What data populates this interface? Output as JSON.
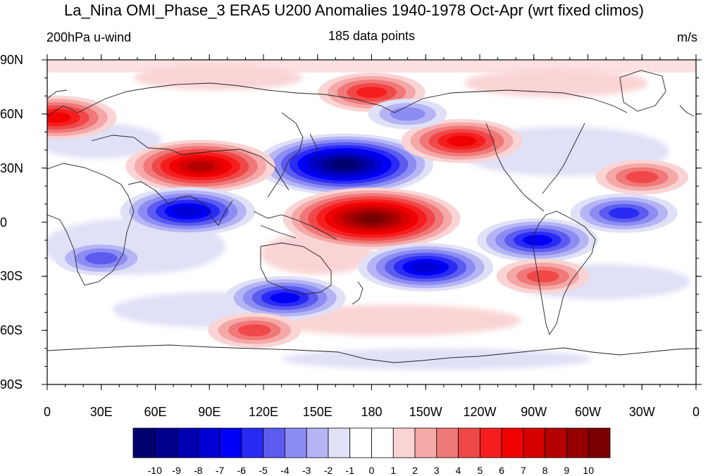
{
  "title": "La_Nina OMI_Phase_3 ERA5 U200 Anomalies 1940-1978 Oct-Apr (wrt fixed climos)",
  "left_label": "200hPa u-wind",
  "center_label": "185 data points",
  "right_label": "m/s",
  "lat_labels": [
    "90N",
    "60N",
    "30N",
    "0",
    "30S",
    "60S",
    "90S"
  ],
  "lon_labels": [
    "0",
    "30E",
    "60E",
    "90E",
    "120E",
    "150E",
    "180",
    "150W",
    "120W",
    "90W",
    "60W",
    "30W",
    "0"
  ],
  "colorbar": {
    "labels": [
      "-10",
      "-9",
      "-8",
      "-7",
      "-6",
      "-5",
      "-4",
      "-3",
      "-2",
      "-1",
      "0",
      "1",
      "2",
      "3",
      "4",
      "5",
      "6",
      "7",
      "8",
      "9",
      "10"
    ],
    "colors": [
      "#00006f",
      "#00008f",
      "#0000b3",
      "#0000d4",
      "#0000f5",
      "#2a2af5",
      "#5b5bf0",
      "#8c8cf2",
      "#b5b5f5",
      "#e0e0f7",
      "#ffffff",
      "#ffffff",
      "#fad4d4",
      "#f5a8a8",
      "#f07878",
      "#f04848",
      "#f51e1e",
      "#f00000",
      "#d60000",
      "#b50000",
      "#960000",
      "#7a0000"
    ]
  },
  "map": {
    "projection": "cylindrical-equidistant",
    "center_longitude": 180,
    "anomalies": [
      {
        "lon": 165,
        "lat": 32,
        "value": -10,
        "sign": "negative"
      },
      {
        "lon": 85,
        "lat": 31,
        "value": 8,
        "sign": "positive"
      },
      {
        "lon": 78,
        "lat": 6,
        "value": -7,
        "sign": "negative"
      },
      {
        "lon": 180,
        "lat": 2,
        "value": 10,
        "sign": "positive"
      },
      {
        "lon": 210,
        "lat": -25,
        "value": -7,
        "sign": "negative"
      },
      {
        "lon": 272,
        "lat": -10,
        "value": -6,
        "sign": "negative"
      },
      {
        "lon": 132,
        "lat": -42,
        "value": -6,
        "sign": "negative"
      },
      {
        "lon": 230,
        "lat": 45,
        "value": 6,
        "sign": "positive"
      },
      {
        "lon": 180,
        "lat": 72,
        "value": 5,
        "sign": "positive"
      },
      {
        "lon": 320,
        "lat": 5,
        "value": -5,
        "sign": "negative"
      },
      {
        "lon": 5,
        "lat": 58,
        "value": 6,
        "sign": "positive"
      },
      {
        "lon": 115,
        "lat": -60,
        "value": 4,
        "sign": "positive"
      },
      {
        "lon": 275,
        "lat": -30,
        "value": 4,
        "sign": "positive"
      },
      {
        "lon": 330,
        "lat": 25,
        "value": 4,
        "sign": "positive"
      },
      {
        "lon": 200,
        "lat": 60,
        "value": -3,
        "sign": "negative"
      },
      {
        "lon": 30,
        "lat": -20,
        "value": -4,
        "sign": "negative"
      }
    ]
  }
}
